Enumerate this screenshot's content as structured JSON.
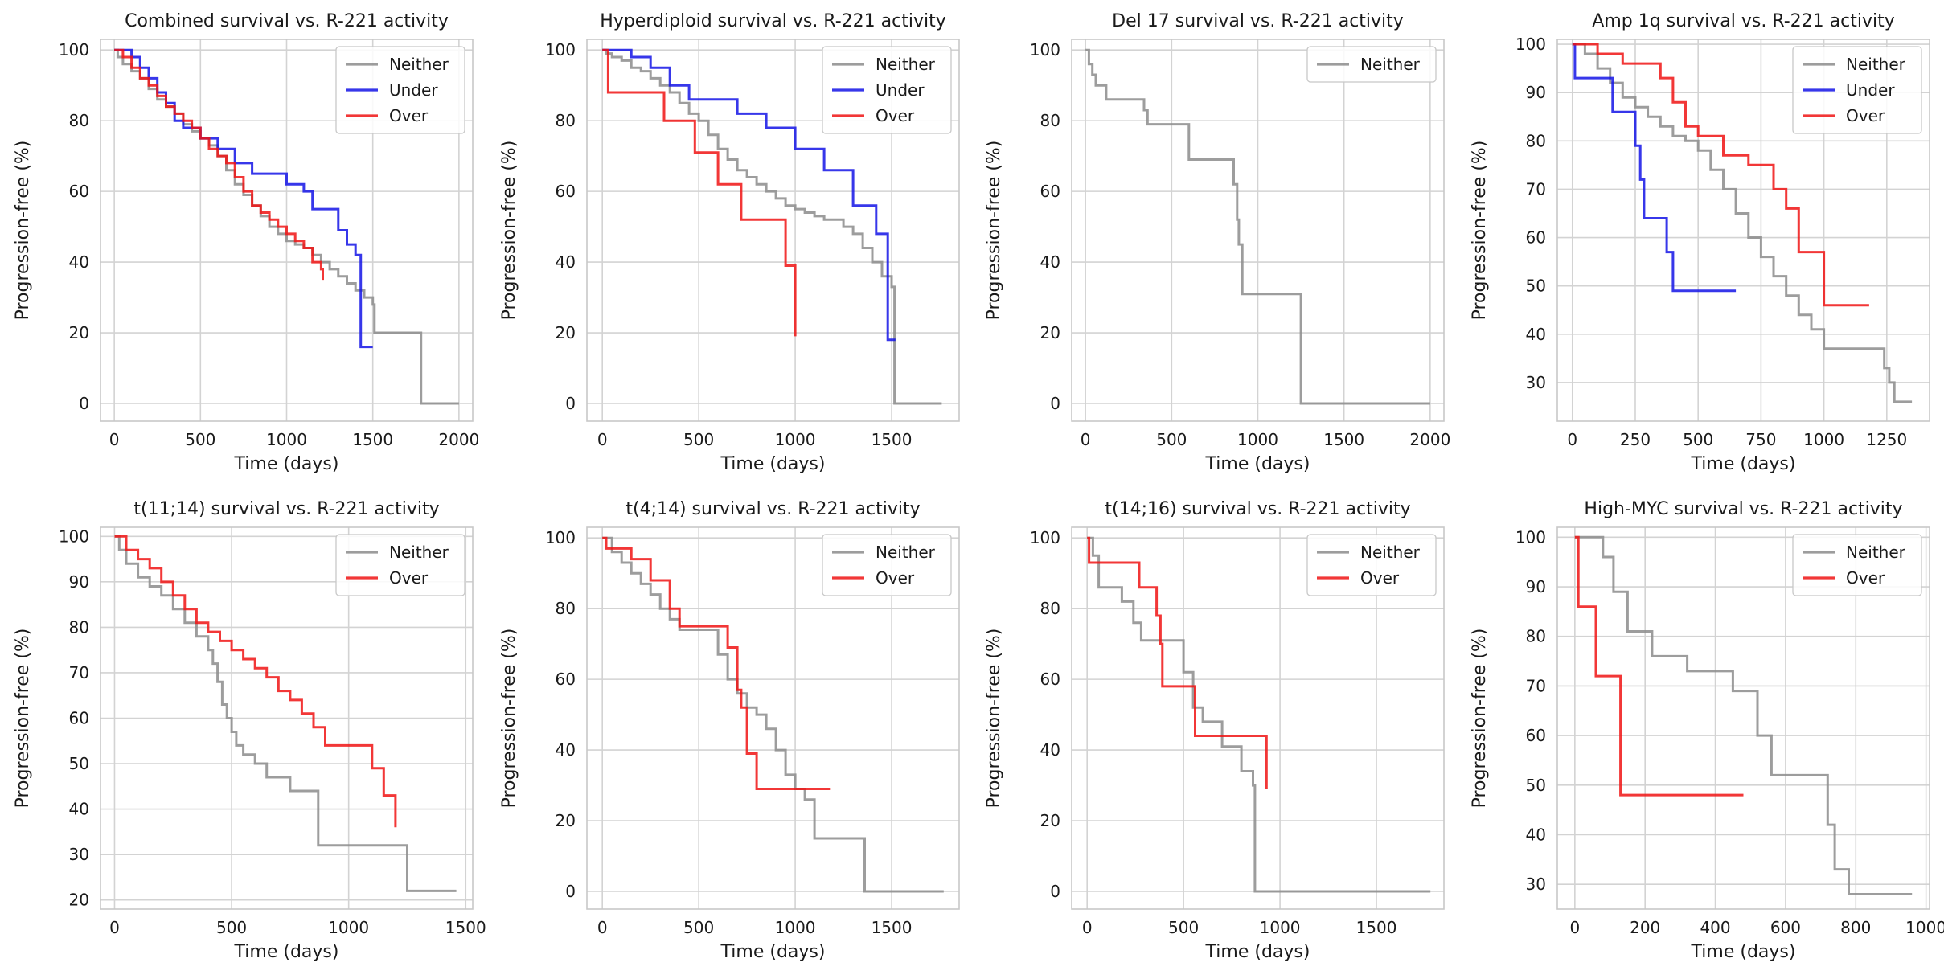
{
  "figure": {
    "title": ""
  },
  "colors": {
    "Neither": "#8c8c8c",
    "Under": "#1414e6",
    "Over": "#f01414"
  },
  "chart_data": [
    {
      "type": "line",
      "title": "Combined survival vs. R-221 activity",
      "xlabel": "Time (days)",
      "ylabel": "Progression-free (%)",
      "xlim": [
        -80,
        2080
      ],
      "ylim": [
        -5,
        103
      ],
      "xticks": [
        0,
        500,
        1000,
        1500,
        2000
      ],
      "yticks": [
        0,
        20,
        40,
        60,
        80,
        100
      ],
      "grid": true,
      "legend": "top-right",
      "series": [
        {
          "name": "Neither",
          "x": [
            0,
            20,
            50,
            100,
            150,
            200,
            250,
            300,
            350,
            400,
            450,
            500,
            550,
            600,
            650,
            700,
            750,
            800,
            850,
            900,
            950,
            1000,
            1050,
            1100,
            1150,
            1200,
            1250,
            1300,
            1350,
            1400,
            1450,
            1500,
            1510,
            1770,
            1780,
            2000
          ],
          "y": [
            100,
            98,
            96,
            94,
            92,
            89,
            86,
            84,
            82,
            79,
            77,
            75,
            73,
            70,
            66,
            62,
            59,
            56,
            53,
            50,
            48,
            46,
            45,
            44,
            42,
            40,
            38,
            36,
            34,
            32,
            30,
            28,
            20,
            20,
            0,
            0
          ]
        },
        {
          "name": "Under",
          "x": [
            0,
            100,
            150,
            200,
            250,
            300,
            350,
            400,
            500,
            600,
            700,
            800,
            900,
            1000,
            1100,
            1150,
            1300,
            1350,
            1400,
            1430,
            1500
          ],
          "y": [
            100,
            98,
            95,
            92,
            88,
            85,
            80,
            78,
            75,
            72,
            68,
            65,
            65,
            62,
            60,
            55,
            49,
            45,
            42,
            16,
            16
          ]
        },
        {
          "name": "Over",
          "x": [
            0,
            50,
            100,
            150,
            200,
            250,
            300,
            350,
            400,
            450,
            500,
            550,
            600,
            650,
            700,
            750,
            800,
            850,
            900,
            950,
            1000,
            1050,
            1100,
            1150,
            1200,
            1210
          ],
          "y": [
            100,
            98,
            95,
            92,
            90,
            87,
            84,
            82,
            80,
            78,
            75,
            72,
            70,
            68,
            64,
            60,
            56,
            54,
            52,
            50,
            48,
            46,
            44,
            40,
            38,
            35
          ]
        }
      ]
    },
    {
      "type": "line",
      "title": "Hyperdiploid survival vs. R-221 activity",
      "xlabel": "Time (days)",
      "ylabel": "Progression-free (%)",
      "xlim": [
        -80,
        1850
      ],
      "ylim": [
        -5,
        103
      ],
      "xticks": [
        0,
        500,
        1000,
        1500
      ],
      "yticks": [
        0,
        20,
        40,
        60,
        80,
        100
      ],
      "grid": true,
      "legend": "top-right",
      "series": [
        {
          "name": "Neither",
          "x": [
            0,
            20,
            50,
            100,
            150,
            200,
            250,
            300,
            350,
            400,
            450,
            500,
            550,
            600,
            650,
            700,
            750,
            800,
            850,
            900,
            950,
            1000,
            1050,
            1100,
            1150,
            1200,
            1250,
            1300,
            1350,
            1400,
            1450,
            1500,
            1515,
            1760
          ],
          "y": [
            100,
            99,
            98,
            97,
            95,
            94,
            92,
            90,
            88,
            85,
            82,
            80,
            76,
            72,
            69,
            66,
            64,
            62,
            60,
            58,
            56,
            55,
            54,
            53,
            52,
            52,
            50,
            48,
            44,
            40,
            36,
            33,
            0,
            0
          ]
        },
        {
          "name": "Under",
          "x": [
            0,
            150,
            250,
            350,
            450,
            550,
            700,
            850,
            1000,
            1150,
            1300,
            1420,
            1480,
            1520
          ],
          "y": [
            100,
            98,
            95,
            90,
            86,
            86,
            82,
            78,
            72,
            66,
            56,
            48,
            18,
            18
          ]
        },
        {
          "name": "Over",
          "x": [
            0,
            30,
            320,
            480,
            600,
            720,
            950,
            1000
          ],
          "y": [
            100,
            88,
            80,
            71,
            62,
            52,
            39,
            19
          ]
        }
      ]
    },
    {
      "type": "line",
      "title": "Del 17 survival vs. R-221 activity",
      "xlabel": "Time (days)",
      "ylabel": "Progression-free (%)",
      "xlim": [
        -80,
        2080
      ],
      "ylim": [
        -5,
        103
      ],
      "xticks": [
        0,
        500,
        1000,
        1500,
        2000
      ],
      "yticks": [
        0,
        20,
        40,
        60,
        80,
        100
      ],
      "grid": true,
      "legend": "top-right",
      "series": [
        {
          "name": "Neither",
          "x": [
            0,
            20,
            40,
            60,
            120,
            340,
            360,
            560,
            600,
            860,
            880,
            890,
            910,
            1250,
            2000
          ],
          "y": [
            100,
            96,
            93,
            90,
            86,
            83,
            79,
            79,
            69,
            62,
            52,
            45,
            31,
            0,
            0
          ]
        }
      ]
    },
    {
      "type": "line",
      "title": "Amp 1q survival vs. R-221 activity",
      "xlabel": "Time (days)",
      "ylabel": "Progression-free (%)",
      "xlim": [
        -60,
        1420
      ],
      "ylim": [
        22,
        101
      ],
      "xticks": [
        0,
        250,
        500,
        750,
        1000,
        1250
      ],
      "yticks": [
        30,
        40,
        50,
        60,
        70,
        80,
        90,
        100
      ],
      "grid": true,
      "legend": "top-right",
      "series": [
        {
          "name": "Neither",
          "x": [
            0,
            50,
            100,
            150,
            200,
            250,
            300,
            350,
            400,
            450,
            500,
            550,
            600,
            650,
            700,
            750,
            800,
            850,
            900,
            950,
            1000,
            1050,
            1100,
            1150,
            1200,
            1240,
            1260,
            1280,
            1350
          ],
          "y": [
            100,
            98,
            95,
            92,
            89,
            87,
            85,
            83,
            81,
            80,
            78,
            74,
            70,
            65,
            60,
            56,
            52,
            48,
            44,
            41,
            37,
            37,
            37,
            37,
            37,
            33,
            30,
            26,
            26
          ]
        },
        {
          "name": "Under",
          "x": [
            0,
            10,
            160,
            250,
            270,
            285,
            375,
            400,
            650
          ],
          "y": [
            100,
            93,
            86,
            79,
            72,
            64,
            57,
            49,
            49
          ]
        },
        {
          "name": "Over",
          "x": [
            0,
            100,
            200,
            350,
            400,
            450,
            500,
            600,
            700,
            800,
            850,
            900,
            1000,
            1180
          ],
          "y": [
            100,
            98,
            96,
            93,
            88,
            83,
            81,
            77,
            75,
            70,
            66,
            57,
            46,
            46
          ]
        }
      ]
    },
    {
      "type": "line",
      "title": "t(11;14) survival vs. R-221 activity",
      "xlabel": "Time (days)",
      "ylabel": "Progression-free (%)",
      "xlim": [
        -60,
        1530
      ],
      "ylim": [
        18,
        102
      ],
      "xticks": [
        0,
        500,
        1000,
        1500
      ],
      "yticks": [
        20,
        30,
        40,
        50,
        60,
        70,
        80,
        90,
        100
      ],
      "grid": true,
      "legend": "top-right",
      "series": [
        {
          "name": "Neither",
          "x": [
            0,
            20,
            50,
            100,
            150,
            200,
            250,
            300,
            350,
            400,
            420,
            440,
            460,
            480,
            500,
            520,
            550,
            600,
            650,
            700,
            750,
            800,
            850,
            870,
            900,
            950,
            1000,
            1100,
            1200,
            1250,
            1460
          ],
          "y": [
            100,
            97,
            94,
            91,
            89,
            87,
            84,
            81,
            78,
            75,
            72,
            68,
            63,
            60,
            57,
            54,
            52,
            50,
            47,
            47,
            44,
            44,
            44,
            32,
            32,
            32,
            32,
            32,
            32,
            22,
            22
          ]
        },
        {
          "name": "Over",
          "x": [
            0,
            50,
            100,
            150,
            200,
            250,
            300,
            350,
            400,
            450,
            500,
            550,
            600,
            650,
            700,
            750,
            800,
            850,
            900,
            950,
            1000,
            1050,
            1100,
            1150,
            1200
          ],
          "y": [
            100,
            97,
            95,
            93,
            90,
            87,
            84,
            81,
            79,
            77,
            75,
            73,
            71,
            69,
            66,
            64,
            61,
            58,
            54,
            54,
            54,
            54,
            49,
            43,
            36
          ]
        }
      ]
    },
    {
      "type": "line",
      "title": "t(4;14) survival vs. R-221 activity",
      "xlabel": "Time (days)",
      "ylabel": "Progression-free (%)",
      "xlim": [
        -80,
        1850
      ],
      "ylim": [
        -5,
        103
      ],
      "xticks": [
        0,
        500,
        1000,
        1500
      ],
      "yticks": [
        0,
        20,
        40,
        60,
        80,
        100
      ],
      "grid": true,
      "legend": "top-right",
      "series": [
        {
          "name": "Neither",
          "x": [
            0,
            50,
            100,
            150,
            200,
            250,
            300,
            350,
            400,
            450,
            500,
            550,
            600,
            650,
            700,
            750,
            800,
            850,
            900,
            950,
            1000,
            1050,
            1100,
            1350,
            1360,
            1770
          ],
          "y": [
            100,
            96,
            93,
            90,
            87,
            84,
            80,
            77,
            74,
            74,
            74,
            74,
            67,
            60,
            56,
            52,
            50,
            46,
            40,
            33,
            29,
            26,
            15,
            15,
            0,
            0
          ]
        },
        {
          "name": "Over",
          "x": [
            0,
            20,
            150,
            250,
            350,
            400,
            550,
            650,
            700,
            720,
            750,
            800,
            1180
          ],
          "y": [
            100,
            97,
            94,
            88,
            80,
            75,
            75,
            69,
            57,
            52,
            39,
            29,
            29
          ]
        }
      ]
    },
    {
      "type": "line",
      "title": "t(14;16) survival vs. R-221 activity",
      "xlabel": "Time (days)",
      "ylabel": "Progression-free (%)",
      "xlim": [
        -80,
        1850
      ],
      "ylim": [
        -5,
        103
      ],
      "xticks": [
        0,
        500,
        1000,
        1500
      ],
      "yticks": [
        0,
        20,
        40,
        60,
        80,
        100
      ],
      "grid": true,
      "legend": "top-right",
      "series": [
        {
          "name": "Neither",
          "x": [
            0,
            30,
            60,
            180,
            240,
            280,
            350,
            500,
            550,
            600,
            700,
            800,
            860,
            870,
            1780
          ],
          "y": [
            100,
            95,
            86,
            82,
            76,
            71,
            71,
            62,
            52,
            48,
            41,
            34,
            30,
            0,
            0
          ]
        },
        {
          "name": "Over",
          "x": [
            0,
            10,
            270,
            360,
            380,
            390,
            560,
            920,
            930
          ],
          "y": [
            100,
            93,
            86,
            78,
            70,
            58,
            44,
            44,
            29
          ]
        }
      ]
    },
    {
      "type": "line",
      "title": "High-MYC survival vs. R-221 activity",
      "xlabel": "Time (days)",
      "ylabel": "Progression-free (%)",
      "xlim": [
        -50,
        1010
      ],
      "ylim": [
        25,
        102
      ],
      "xticks": [
        0,
        200,
        400,
        600,
        800,
        1000
      ],
      "yticks": [
        30,
        40,
        50,
        60,
        70,
        80,
        90,
        100
      ],
      "grid": true,
      "legend": "top-right",
      "series": [
        {
          "name": "Neither",
          "x": [
            0,
            80,
            110,
            150,
            220,
            320,
            450,
            520,
            560,
            670,
            720,
            740,
            780,
            960
          ],
          "y": [
            100,
            96,
            89,
            81,
            76,
            73,
            69,
            60,
            52,
            52,
            42,
            33,
            28,
            28
          ]
        },
        {
          "name": "Over",
          "x": [
            0,
            10,
            60,
            130,
            480
          ],
          "y": [
            100,
            86,
            72,
            48,
            48
          ]
        }
      ]
    }
  ]
}
